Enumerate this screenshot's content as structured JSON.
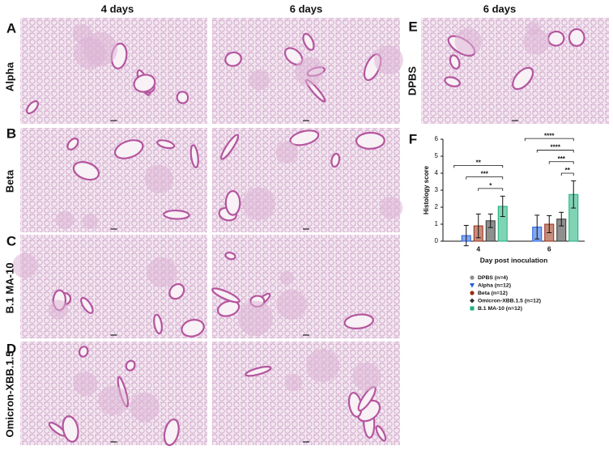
{
  "columns": [
    "4 days",
    "6 days",
    "6 days"
  ],
  "panel_letters": [
    "A",
    "B",
    "C",
    "D",
    "E",
    "F"
  ],
  "row_labels": [
    "Alpha",
    "Beta",
    "B.1 MA-10",
    "Omicron-XBB.1.5",
    "DPBS"
  ],
  "chart_data": {
    "type": "bar",
    "y_label": "Histology score",
    "x_label": "Day post inoculation",
    "categories": [
      "4",
      "6"
    ],
    "ylim": [
      0,
      6
    ],
    "yticks": [
      0,
      1,
      2,
      3,
      4,
      5,
      6
    ],
    "series": [
      {
        "name": "DPBS (n=4)",
        "color": "#8c8c8c",
        "marker": "circle",
        "values": [
          0,
          0
        ],
        "errors": [
          0,
          0
        ]
      },
      {
        "name": "Alpha (n=12)",
        "color": "#1f5fe0",
        "marker": "triangle",
        "values": [
          0.33,
          0.83
        ],
        "errors": [
          0.6,
          0.7
        ]
      },
      {
        "name": "Beta (n=12)",
        "color": "#9a2d10",
        "marker": "circle",
        "values": [
          0.9,
          1.0
        ],
        "errors": [
          0.7,
          0.5
        ]
      },
      {
        "name": "Omicron-XBB.1.5 (n=12)",
        "color": "#333333",
        "marker": "diamond",
        "values": [
          1.2,
          1.3
        ],
        "errors": [
          0.4,
          0.4
        ]
      },
      {
        "name": "B.1 MA-10 (n=12)",
        "color": "#18b07a",
        "marker": "square",
        "values": [
          2.05,
          2.75
        ],
        "errors": [
          0.6,
          0.8
        ]
      }
    ],
    "significance": [
      {
        "text": "*",
        "group": 0,
        "from": 2,
        "to": 4
      },
      {
        "text": "***",
        "group": 0,
        "from": 1,
        "to": 4
      },
      {
        "text": "**",
        "group": 0,
        "from": 0,
        "to": 4
      },
      {
        "text": "**",
        "group": 1,
        "from": 3,
        "to": 4
      },
      {
        "text": "***",
        "group": 1,
        "from": 2,
        "to": 4
      },
      {
        "text": "****",
        "group": 1,
        "from": 1,
        "to": 4
      },
      {
        "text": "****",
        "group": 1,
        "from": 0,
        "to": 4
      }
    ]
  }
}
